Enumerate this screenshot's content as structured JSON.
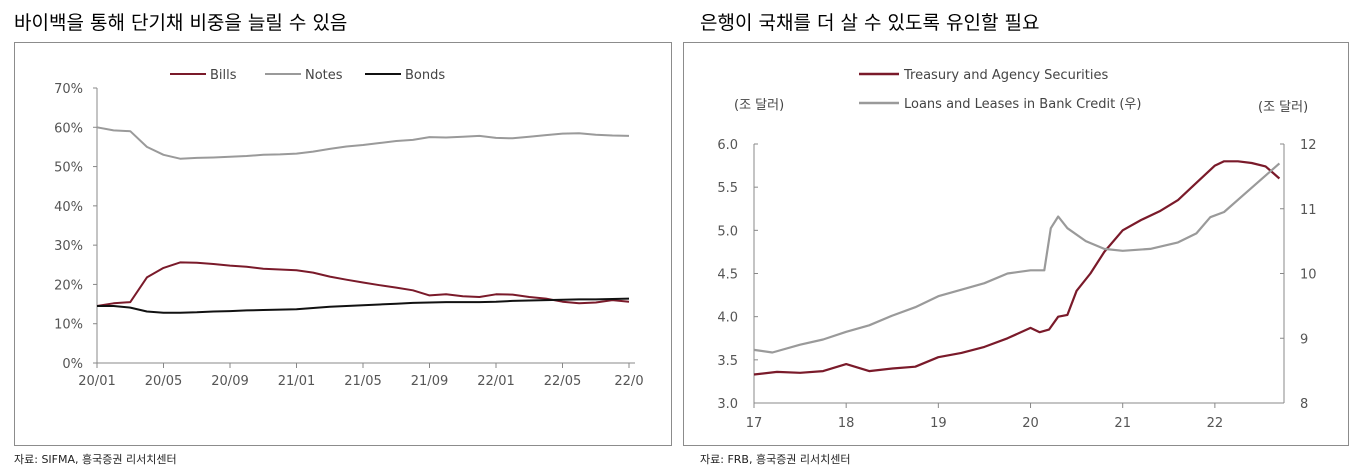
{
  "left": {
    "title": "바이백을 통해 단기채 비중을 늘릴 수 있음",
    "source": "자료: SIFMA, 흥국증권 리서치센터"
  },
  "right": {
    "title": "은행이 국채를 더 살 수 있도록 유인할 필요",
    "source": "자료: FRB, 흥국증권 리서치센터"
  },
  "chart_data": [
    {
      "type": "line",
      "title": "",
      "xlabel": "",
      "ylabel": "",
      "x": [
        "20/01",
        "20/02",
        "20/03",
        "20/04",
        "20/05",
        "20/06",
        "20/07",
        "20/08",
        "20/09",
        "20/10",
        "20/11",
        "20/12",
        "21/01",
        "21/02",
        "21/03",
        "21/04",
        "21/05",
        "21/06",
        "21/07",
        "21/08",
        "21/09",
        "21/10",
        "21/11",
        "21/12",
        "22/01",
        "22/02",
        "22/03",
        "22/04",
        "22/05",
        "22/06",
        "22/07",
        "22/08",
        "22/09"
      ],
      "x_tick_labels": [
        "20/01",
        "20/05",
        "20/09",
        "21/01",
        "21/05",
        "21/09",
        "22/01",
        "22/05",
        "22/0"
      ],
      "y_tick_labels": [
        "0%",
        "10%",
        "20%",
        "30%",
        "40%",
        "50%",
        "60%",
        "70%"
      ],
      "ylim": [
        0,
        70
      ],
      "legend_position": "top",
      "series": [
        {
          "name": "Bills",
          "color": "#7a1a2a",
          "values": [
            14.5,
            15.2,
            15.5,
            21.8,
            24.2,
            25.6,
            25.5,
            25.2,
            24.8,
            24.5,
            24.0,
            23.8,
            23.6,
            23.0,
            22.0,
            21.2,
            20.5,
            19.8,
            19.2,
            18.5,
            17.2,
            17.5,
            17.0,
            16.8,
            17.5,
            17.4,
            16.8,
            16.4,
            15.6,
            15.2,
            15.4,
            16.0,
            15.6
          ]
        },
        {
          "name": "Notes",
          "color": "#9a9a9a",
          "values": [
            60.0,
            59.2,
            59.0,
            55.0,
            53.0,
            52.0,
            52.2,
            52.3,
            52.5,
            52.7,
            53.0,
            53.1,
            53.3,
            53.8,
            54.5,
            55.1,
            55.5,
            56.0,
            56.5,
            56.8,
            57.5,
            57.4,
            57.6,
            57.8,
            57.3,
            57.2,
            57.6,
            58.0,
            58.4,
            58.5,
            58.1,
            57.9,
            57.8
          ]
        },
        {
          "name": "Bonds",
          "color": "#111111",
          "values": [
            14.5,
            14.5,
            14.1,
            13.1,
            12.8,
            12.8,
            12.9,
            13.1,
            13.2,
            13.4,
            13.5,
            13.6,
            13.7,
            14.0,
            14.3,
            14.5,
            14.7,
            14.9,
            15.1,
            15.3,
            15.4,
            15.5,
            15.5,
            15.5,
            15.6,
            15.8,
            15.9,
            16.0,
            16.1,
            16.2,
            16.2,
            16.3,
            16.4
          ]
        }
      ]
    },
    {
      "type": "line",
      "title": "",
      "xlabel": "",
      "y_left_unit": "(조 달러)",
      "y_right_unit": "(조 달러)",
      "x_tick_labels": [
        "17",
        "18",
        "19",
        "20",
        "21",
        "22"
      ],
      "y_left_tick_labels": [
        "3.0",
        "3.5",
        "4.0",
        "4.5",
        "5.0",
        "5.5",
        "6.0"
      ],
      "y_right_tick_labels": [
        "8",
        "9",
        "10",
        "11",
        "12"
      ],
      "y_left_lim": [
        3.0,
        6.0
      ],
      "y_right_lim": [
        8,
        12
      ],
      "x_range": [
        2017,
        2022.75
      ],
      "legend_position": "top-left",
      "series": [
        {
          "name": "Treasury and Agency Securities",
          "axis": "left",
          "color": "#7a1a2a",
          "x": [
            2017.0,
            2017.25,
            2017.5,
            2017.75,
            2018.0,
            2018.25,
            2018.5,
            2018.75,
            2019.0,
            2019.25,
            2019.5,
            2019.75,
            2020.0,
            2020.1,
            2020.2,
            2020.3,
            2020.4,
            2020.5,
            2020.65,
            2020.8,
            2021.0,
            2021.2,
            2021.4,
            2021.6,
            2021.8,
            2022.0,
            2022.1,
            2022.25,
            2022.4,
            2022.55,
            2022.7
          ],
          "values": [
            3.33,
            3.36,
            3.35,
            3.37,
            3.45,
            3.37,
            3.4,
            3.42,
            3.53,
            3.58,
            3.65,
            3.75,
            3.87,
            3.82,
            3.85,
            4.0,
            4.02,
            4.3,
            4.5,
            4.75,
            5.0,
            5.12,
            5.22,
            5.35,
            5.55,
            5.75,
            5.8,
            5.8,
            5.78,
            5.74,
            5.6
          ]
        },
        {
          "name": "Loans and Leases in Bank Credit (우)",
          "axis": "right",
          "color": "#9a9a9a",
          "x": [
            2017.0,
            2017.2,
            2017.5,
            2017.75,
            2018.0,
            2018.25,
            2018.5,
            2018.75,
            2019.0,
            2019.25,
            2019.5,
            2019.75,
            2020.0,
            2020.15,
            2020.22,
            2020.3,
            2020.4,
            2020.6,
            2020.8,
            2021.0,
            2021.3,
            2021.6,
            2021.8,
            2021.95,
            2022.1,
            2022.3,
            2022.5,
            2022.7
          ],
          "values": [
            8.82,
            8.78,
            8.9,
            8.98,
            9.1,
            9.2,
            9.35,
            9.48,
            9.65,
            9.75,
            9.85,
            10.0,
            10.05,
            10.05,
            10.7,
            10.88,
            10.7,
            10.5,
            10.38,
            10.35,
            10.38,
            10.48,
            10.62,
            10.87,
            10.95,
            11.2,
            11.45,
            11.7
          ]
        }
      ]
    }
  ]
}
